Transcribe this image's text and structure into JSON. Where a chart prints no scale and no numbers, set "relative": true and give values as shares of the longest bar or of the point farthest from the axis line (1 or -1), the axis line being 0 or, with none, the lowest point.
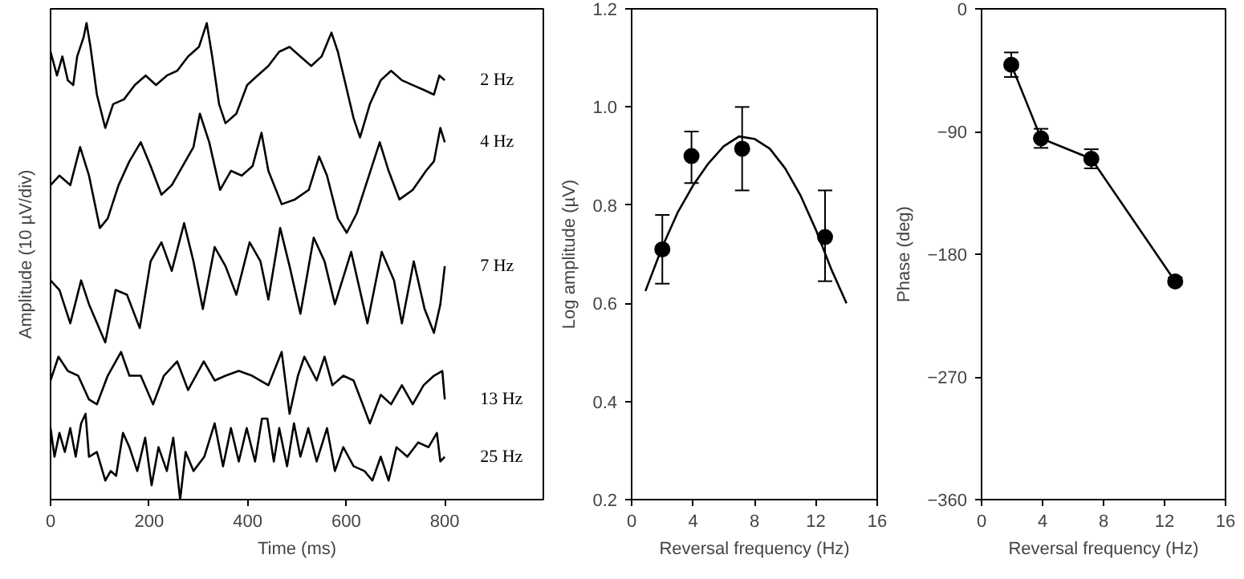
{
  "chart_data": [
    {
      "type": "line",
      "relative": true,
      "xlabel": "Time (ms)",
      "ylabel": "Amplitude (10 µV/div)",
      "xlim": [
        0,
        1000
      ],
      "xticks": [
        0,
        200,
        400,
        600,
        800
      ],
      "tick_labels": "x",
      "marker": "none",
      "series": [
        {
          "name": "2 Hz",
          "color": "#000000",
          "x": [
            0,
            13,
            24,
            35,
            46,
            54,
            67,
            73,
            81,
            94,
            111,
            127,
            149,
            171,
            193,
            214,
            236,
            257,
            279,
            301,
            317,
            328,
            342,
            355,
            377,
            399,
            420,
            442,
            464,
            485,
            507,
            529,
            550,
            570,
            583,
            599,
            615,
            628,
            648,
            670,
            691,
            713,
            735,
            757,
            778,
            789,
            800
          ],
          "values": [
            0.94,
            0.89,
            0.93,
            0.88,
            0.87,
            0.93,
            0.97,
            1.0,
            0.95,
            0.85,
            0.78,
            0.83,
            0.84,
            0.87,
            0.89,
            0.87,
            0.89,
            0.9,
            0.93,
            0.95,
            1.0,
            0.93,
            0.83,
            0.79,
            0.81,
            0.87,
            0.89,
            0.91,
            0.94,
            0.95,
            0.93,
            0.91,
            0.93,
            0.98,
            0.94,
            0.87,
            0.8,
            0.76,
            0.83,
            0.88,
            0.9,
            0.88,
            0.87,
            0.86,
            0.85,
            0.89,
            0.88
          ]
        },
        {
          "name": "4 Hz",
          "color": "#000000",
          "x": [
            0,
            18,
            40,
            60,
            78,
            100,
            116,
            138,
            160,
            183,
            203,
            225,
            246,
            268,
            290,
            303,
            322,
            344,
            366,
            388,
            410,
            428,
            442,
            469,
            496,
            524,
            545,
            561,
            583,
            601,
            621,
            643,
            668,
            686,
            708,
            735,
            762,
            778,
            791,
            800
          ],
          "values": [
            0.66,
            0.68,
            0.66,
            0.74,
            0.68,
            0.57,
            0.59,
            0.66,
            0.71,
            0.75,
            0.7,
            0.64,
            0.66,
            0.7,
            0.74,
            0.81,
            0.75,
            0.65,
            0.69,
            0.68,
            0.7,
            0.77,
            0.69,
            0.62,
            0.63,
            0.65,
            0.72,
            0.68,
            0.59,
            0.56,
            0.6,
            0.67,
            0.75,
            0.69,
            0.63,
            0.65,
            0.69,
            0.71,
            0.78,
            0.75
          ]
        },
        {
          "name": "7 Hz",
          "color": "#000000",
          "x": [
            0,
            18,
            40,
            62,
            78,
            111,
            132,
            155,
            181,
            203,
            225,
            246,
            271,
            290,
            309,
            333,
            355,
            377,
            404,
            426,
            442,
            466,
            485,
            507,
            534,
            556,
            577,
            610,
            643,
            672,
            697,
            713,
            737,
            759,
            778,
            791,
            800
          ],
          "values": [
            0.46,
            0.44,
            0.37,
            0.46,
            0.41,
            0.33,
            0.44,
            0.43,
            0.36,
            0.5,
            0.54,
            0.48,
            0.58,
            0.5,
            0.4,
            0.53,
            0.49,
            0.43,
            0.54,
            0.5,
            0.42,
            0.57,
            0.49,
            0.39,
            0.55,
            0.5,
            0.41,
            0.52,
            0.37,
            0.52,
            0.46,
            0.37,
            0.5,
            0.4,
            0.35,
            0.41,
            0.49
          ]
        },
        {
          "name": "13 Hz",
          "color": "#000000",
          "x": [
            0,
            16,
            35,
            56,
            78,
            94,
            116,
            143,
            160,
            183,
            208,
            230,
            257,
            279,
            311,
            333,
            355,
            382,
            409,
            442,
            469,
            485,
            502,
            515,
            540,
            556,
            572,
            594,
            615,
            648,
            670,
            691,
            713,
            735,
            757,
            778,
            795,
            800
          ],
          "values": [
            0.25,
            0.3,
            0.27,
            0.26,
            0.21,
            0.2,
            0.26,
            0.31,
            0.26,
            0.26,
            0.2,
            0.26,
            0.29,
            0.23,
            0.29,
            0.25,
            0.26,
            0.27,
            0.26,
            0.24,
            0.31,
            0.18,
            0.26,
            0.3,
            0.25,
            0.3,
            0.24,
            0.26,
            0.25,
            0.16,
            0.22,
            0.2,
            0.24,
            0.2,
            0.24,
            0.26,
            0.27,
            0.21
          ]
        },
        {
          "name": "25 Hz",
          "color": "#000000",
          "x": [
            0,
            8,
            18,
            29,
            40,
            51,
            62,
            71,
            78,
            94,
            111,
            122,
            133,
            147,
            160,
            176,
            192,
            205,
            219,
            236,
            249,
            263,
            274,
            290,
            312,
            333,
            350,
            366,
            382,
            398,
            415,
            429,
            440,
            453,
            464,
            480,
            494,
            507,
            523,
            540,
            561,
            577,
            594,
            615,
            637,
            653,
            670,
            686,
            702,
            724,
            746,
            767,
            784,
            791,
            800
          ],
          "values": [
            0.15,
            0.09,
            0.14,
            0.1,
            0.15,
            0.09,
            0.16,
            0.18,
            0.09,
            0.1,
            0.04,
            0.06,
            0.05,
            0.14,
            0.11,
            0.06,
            0.13,
            0.03,
            0.11,
            0.06,
            0.13,
            0.0,
            0.1,
            0.06,
            0.09,
            0.16,
            0.07,
            0.15,
            0.08,
            0.15,
            0.08,
            0.17,
            0.17,
            0.08,
            0.15,
            0.07,
            0.16,
            0.09,
            0.15,
            0.08,
            0.15,
            0.06,
            0.11,
            0.07,
            0.06,
            0.04,
            0.09,
            0.04,
            0.11,
            0.09,
            0.12,
            0.11,
            0.14,
            0.08,
            0.09
          ]
        }
      ]
    },
    {
      "type": "scatter",
      "xlabel": "Reversal frequency (Hz)",
      "ylabel": "Log amplitude (µV)",
      "xlim": [
        0,
        16
      ],
      "xticks": [
        0,
        4,
        8,
        12,
        16
      ],
      "ylim": [
        0.2,
        1.2
      ],
      "yticks": [
        {
          "value": 0.2,
          "label": "0.2"
        },
        {
          "value": 0.4,
          "label": "0.4"
        },
        {
          "value": 0.6,
          "label": "0.6"
        },
        {
          "value": 0.8,
          "label": "0.8"
        },
        {
          "value": 1.0,
          "label": "1.0"
        },
        {
          "value": 1.2,
          "label": "1.2"
        }
      ],
      "series": [
        {
          "type": "scatter",
          "marker": "circle",
          "color": "#000000",
          "x": [
            2.0,
            3.9,
            7.2,
            12.6
          ],
          "values": [
            0.71,
            0.9,
            0.915,
            0.735
          ],
          "errors": [
            [
              0.64,
              0.78
            ],
            [
              0.845,
              0.95
            ],
            [
              0.83,
              1.0
            ],
            [
              0.645,
              0.83
            ]
          ]
        },
        {
          "type": "line",
          "marker": "none",
          "color": "#000000",
          "x": [
            0.9,
            2,
            3,
            4,
            5,
            6,
            7,
            8,
            9,
            10,
            11,
            12,
            13,
            14
          ],
          "values": [
            0.625,
            0.715,
            0.785,
            0.84,
            0.885,
            0.92,
            0.94,
            0.935,
            0.915,
            0.875,
            0.82,
            0.75,
            0.67,
            0.6
          ]
        }
      ]
    },
    {
      "type": "line",
      "xlabel": "Reversal frequency (Hz)",
      "ylabel": "Phase (deg)",
      "xlim": [
        0,
        16
      ],
      "xticks": [
        0,
        4,
        8,
        12,
        16
      ],
      "ylim": [
        -360,
        0
      ],
      "yticks": [
        -360,
        -270,
        -180,
        -90,
        0
      ],
      "marker": "circle",
      "series": [
        {
          "color": "#000000",
          "x": [
            1.95,
            3.9,
            7.2,
            12.7
          ],
          "values": [
            -41,
            -95,
            -110,
            -200
          ],
          "errors": [
            [
              -50,
              -32
            ],
            [
              -102,
              -88
            ],
            [
              -117,
              -103
            ],
            [
              -202,
              -197
            ]
          ]
        }
      ]
    }
  ]
}
